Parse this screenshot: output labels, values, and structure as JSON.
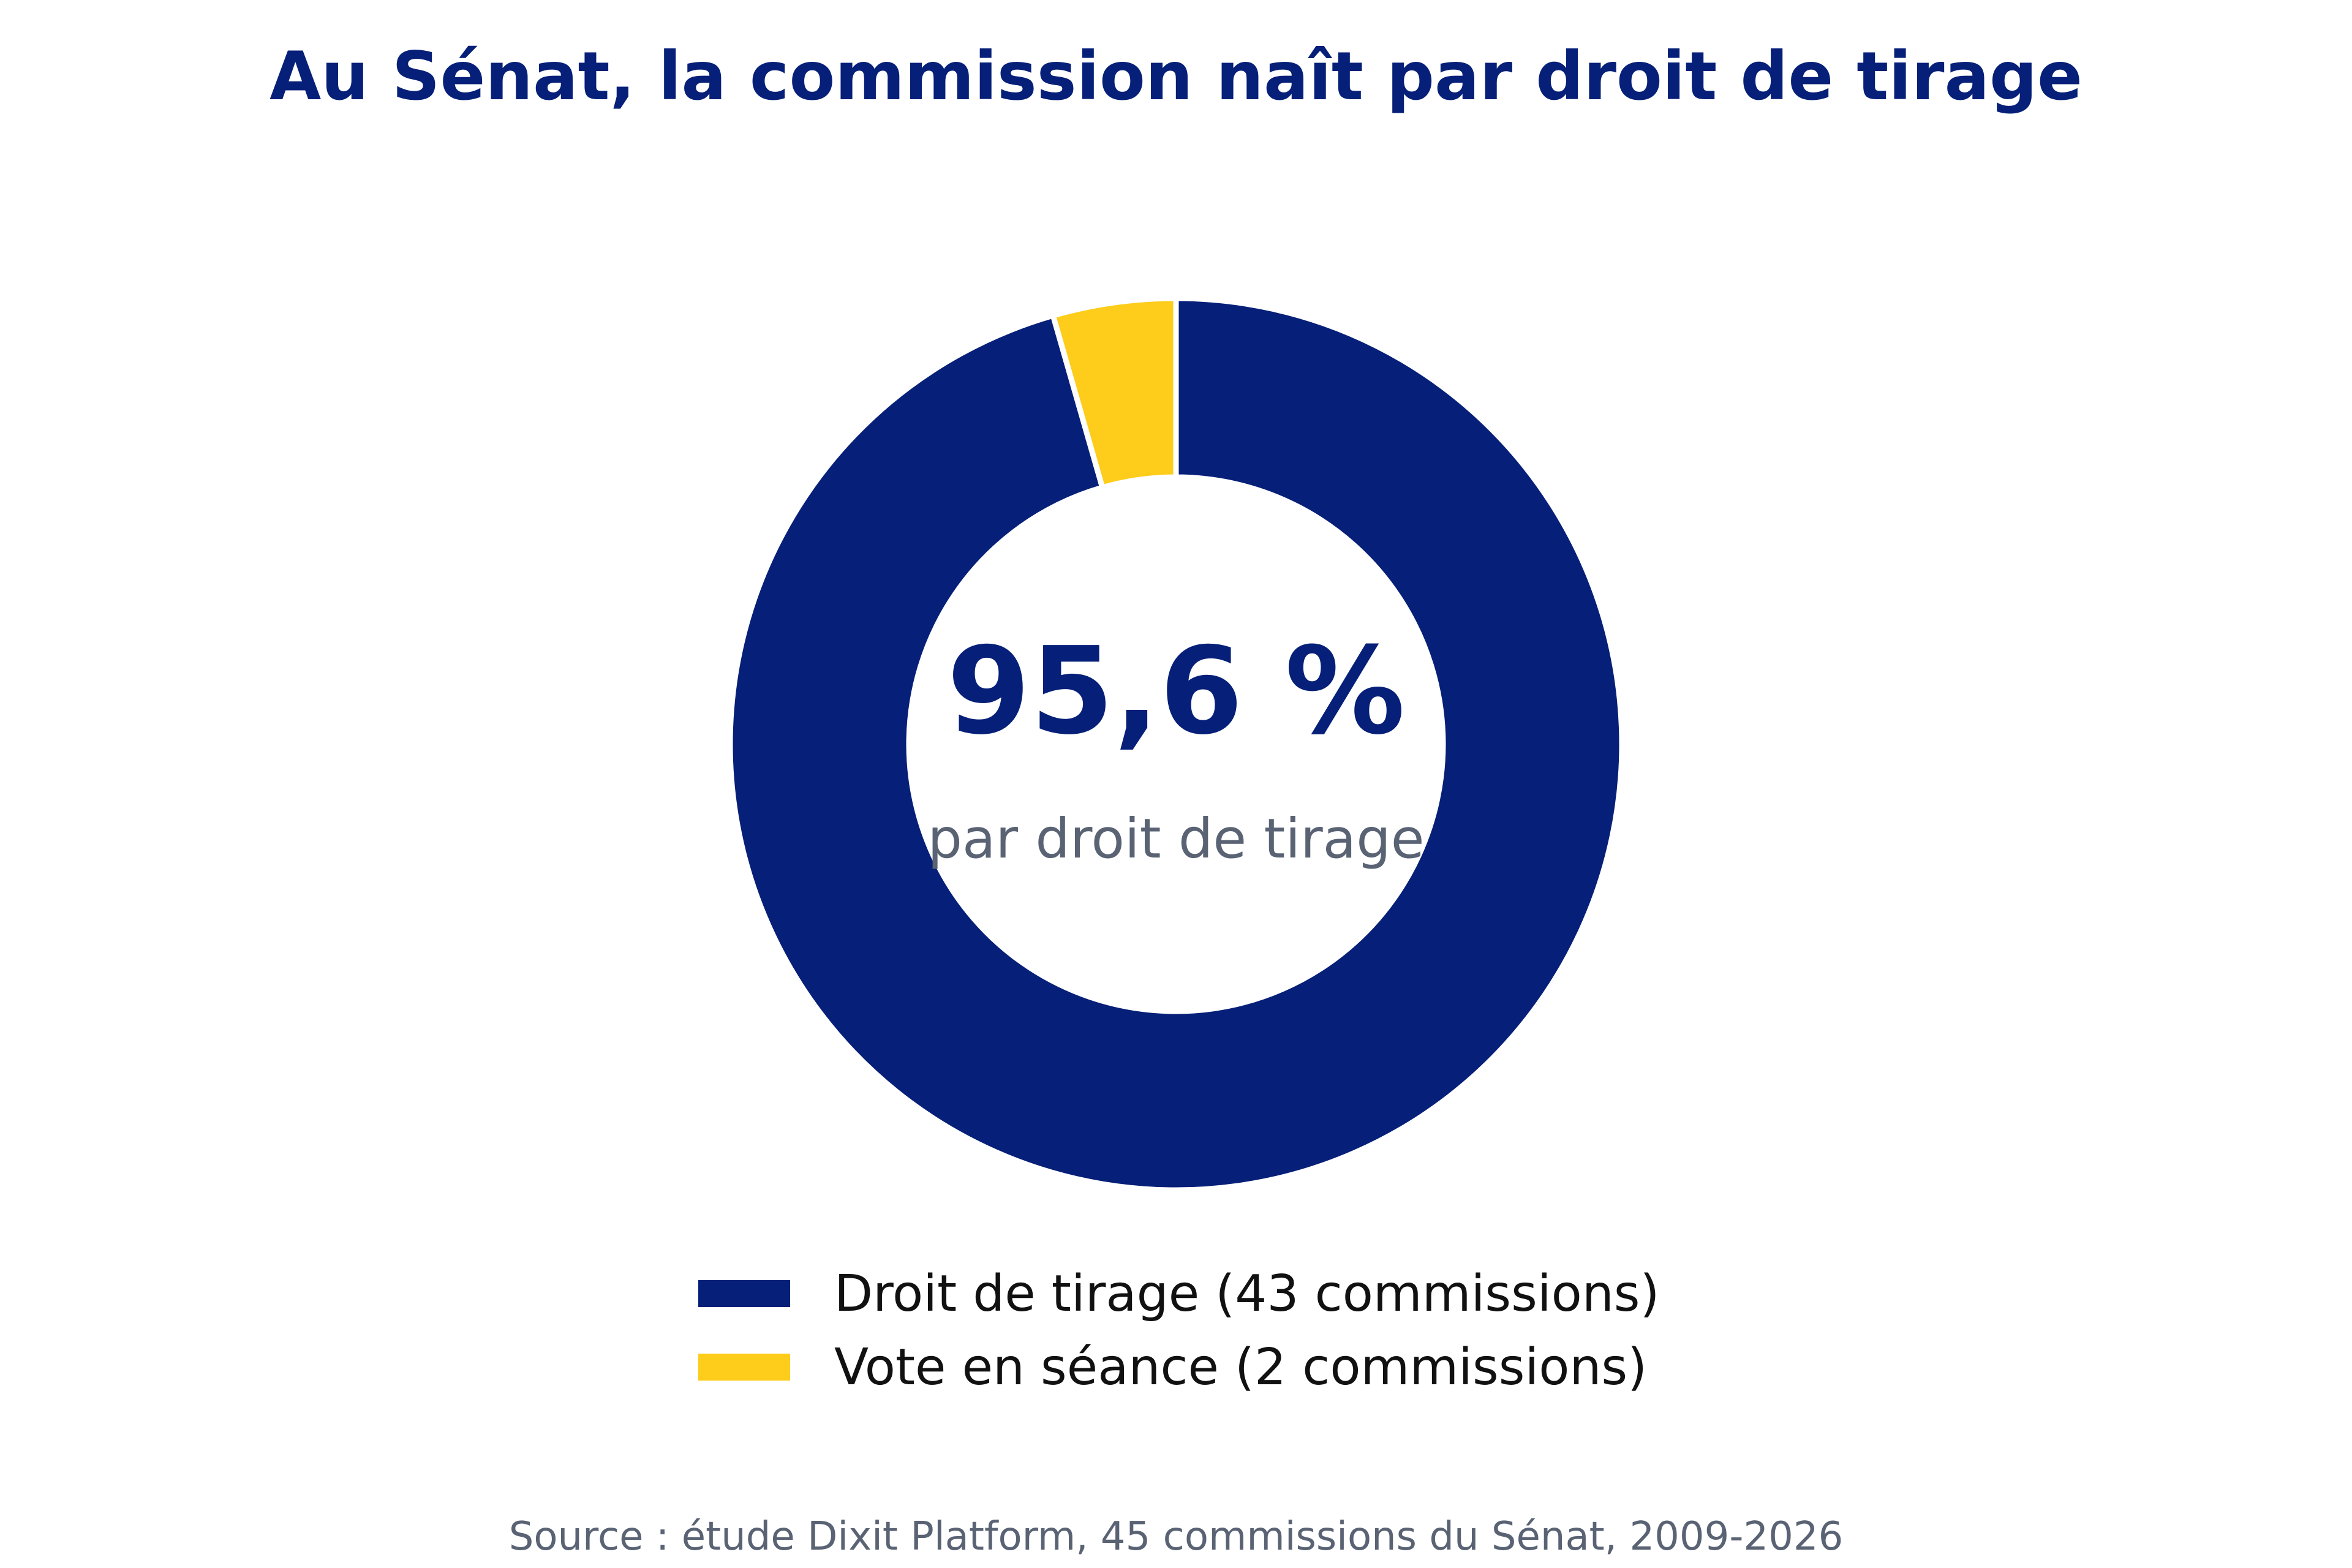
{
  "chart_data": {
    "type": "pie",
    "style": "donut",
    "title": "Au Sénat, la commission naît par droit de tirage",
    "center_value": "95,6 %",
    "center_label": "par droit de tirage",
    "slices": [
      {
        "label": "Droit de tirage (43 commissions)",
        "value": 43,
        "color": "#061f78"
      },
      {
        "label": "Vote en séance (2 commissions)",
        "value": 2,
        "color": "#fecc1a"
      }
    ],
    "legend_position": "bottom",
    "source": "Source : étude Dixit Platform, 45 commissions du Sénat, 2009-2026"
  },
  "colors": {
    "title": "#061f78",
    "center_value": "#061f78",
    "center_label": "#5a6374",
    "legend_text": "#111111",
    "source": "#5a6374",
    "slice_separator": "#ffffff"
  }
}
